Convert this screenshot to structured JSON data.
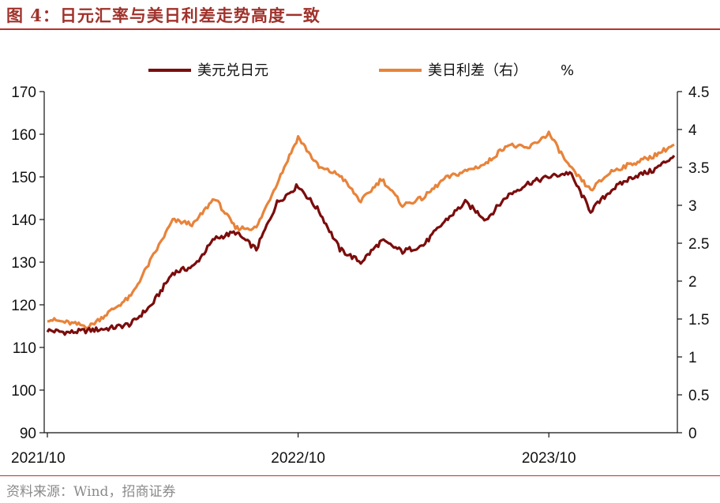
{
  "figure_title": "图 4：日元汇率与美日利差走势高度一致",
  "source": "资料来源：Wind，招商证券",
  "colors": {
    "title": "#a0322b",
    "rule": "#b8322a",
    "usdjpy": "#7b0c0c",
    "spread": "#e8833a"
  },
  "chart_data": {
    "type": "line",
    "title": "",
    "legend_position": "top",
    "x_axis": {
      "tick_labels": [
        "2021/10",
        "2022/10",
        "2023/10"
      ]
    },
    "y_left": {
      "range": [
        90,
        170
      ],
      "ticks": [
        "90",
        "100",
        "110",
        "120",
        "130",
        "140",
        "150",
        "160",
        "170"
      ]
    },
    "y_right": {
      "range": [
        0,
        4.5
      ],
      "ticks": [
        "0",
        "0.5",
        "1",
        "1.5",
        "2",
        "2.5",
        "3",
        "3.5",
        "4",
        "4.5"
      ]
    },
    "x": [
      "2021-10",
      "2021-11",
      "2021-12",
      "2022-01",
      "2022-02",
      "2022-03",
      "2022-04",
      "2022-05",
      "2022-06",
      "2022-07",
      "2022-08",
      "2022-09",
      "2022-10",
      "2022-11",
      "2022-12",
      "2023-01",
      "2023-02",
      "2023-03",
      "2023-04",
      "2023-05",
      "2023-06",
      "2023-07",
      "2023-08",
      "2023-09",
      "2023-10",
      "2023-11",
      "2023-12",
      "2024-01",
      "2024-02",
      "2024-03",
      "2024-04"
    ],
    "series": [
      {
        "name": "美元兑日元",
        "axis": "left",
        "values": [
          114,
          113.5,
          114,
          114.5,
          115.5,
          120,
          127.5,
          129,
          135.5,
          137,
          133,
          144,
          148,
          142,
          133,
          130,
          135,
          132.5,
          134,
          139.5,
          144,
          140,
          145.5,
          148.5,
          150,
          151,
          142,
          147,
          150,
          151.5,
          155
        ]
      },
      {
        "name": "美日利差（右）",
        "axis": "right",
        "values": [
          1.5,
          1.45,
          1.4,
          1.6,
          1.8,
          2.3,
          2.8,
          2.75,
          3.1,
          2.7,
          2.7,
          3.3,
          3.9,
          3.5,
          3.4,
          3.05,
          3.35,
          3.0,
          3.1,
          3.35,
          3.45,
          3.55,
          3.8,
          3.75,
          3.95,
          3.5,
          3.2,
          3.45,
          3.55,
          3.65,
          3.8
        ]
      }
    ],
    "percent_label": "%"
  }
}
